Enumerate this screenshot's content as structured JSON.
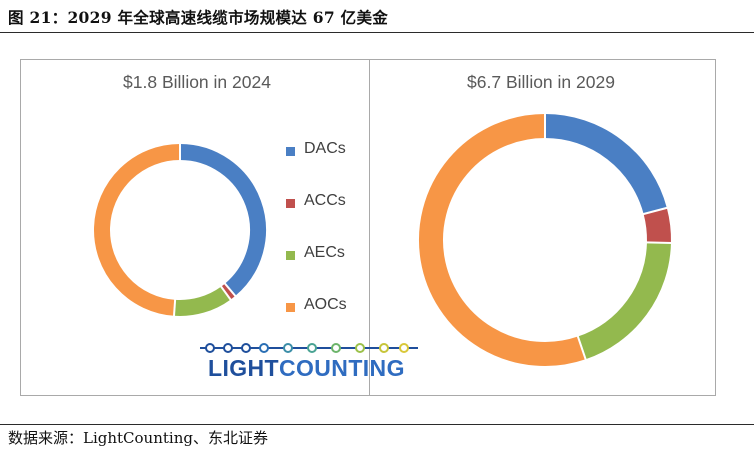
{
  "figure": {
    "title": "图 21：2029 年全球高速线缆市场规模达 67 亿美金",
    "source": "数据来源：LightCounting、东北证券"
  },
  "logo": {
    "word1": "LIGHT",
    "word2": "COUNTING"
  },
  "colors": {
    "DACs": "#4a7fc4",
    "ACCs": "#c0504d",
    "AECs": "#93b94e",
    "AOCs": "#f79646"
  },
  "chart_data": [
    {
      "type": "pie",
      "variant": "donut",
      "title": "$1.8 Billion in 2024",
      "categories": [
        "DACs",
        "ACCs",
        "AECs",
        "AOCs"
      ],
      "values": [
        0.7,
        0.02,
        0.2,
        0.88
      ],
      "unit": "US$ billion",
      "legend": "right"
    },
    {
      "type": "pie",
      "variant": "donut",
      "title": "$6.7 Billion in 2029",
      "categories": [
        "DACs",
        "ACCs",
        "AECs",
        "AOCs"
      ],
      "values": [
        1.4,
        0.3,
        1.3,
        3.7
      ],
      "unit": "US$ billion",
      "legend": "none"
    }
  ]
}
